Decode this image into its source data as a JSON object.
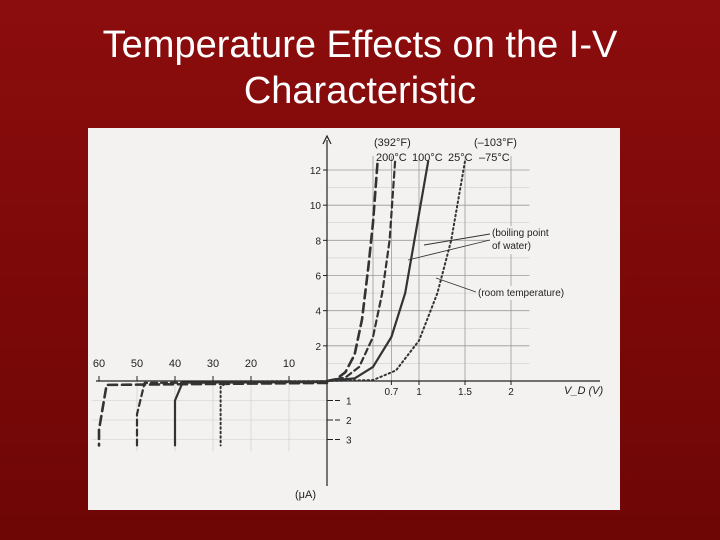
{
  "slide": {
    "title_line1": "Temperature Effects on the I-V",
    "title_line2": "Characteristic"
  },
  "chart_data": {
    "type": "line",
    "xlabel": "V_D (V)",
    "forward_ylabel": "",
    "reverse_ylabel": "(μA)",
    "forward_x_ticks": [
      {
        "v": 0.7,
        "label": "0.7"
      },
      {
        "v": 1,
        "label": "1"
      },
      {
        "v": 1.5,
        "label": "1.5"
      },
      {
        "v": 2,
        "label": "2"
      }
    ],
    "reverse_x_ticks": [
      {
        "v": -10,
        "label": "10"
      },
      {
        "v": -20,
        "label": "20"
      },
      {
        "v": -30,
        "label": "30"
      },
      {
        "v": -40,
        "label": "40"
      },
      {
        "v": -50,
        "label": "50"
      },
      {
        "v": -60,
        "label": "60"
      }
    ],
    "forward_y_ticks": [
      2,
      4,
      6,
      8,
      10,
      12
    ],
    "reverse_y_ticks": [
      {
        "v": 1,
        "label": "1"
      },
      {
        "v": 2,
        "label": "2"
      },
      {
        "v": 3,
        "label": "3"
      }
    ],
    "series": [
      {
        "name": "200°C",
        "style": "dashed-heavy",
        "forward": [
          [
            0,
            0
          ],
          [
            0.1,
            0.1
          ],
          [
            0.2,
            0.5
          ],
          [
            0.3,
            1.5
          ],
          [
            0.38,
            3.5
          ],
          [
            0.45,
            6.5
          ],
          [
            0.5,
            9
          ],
          [
            0.55,
            12.5
          ]
        ],
        "reverse": [
          [
            0,
            -0.1
          ],
          [
            -58,
            -0.2
          ],
          [
            -60,
            -2.5
          ],
          [
            -60,
            -3.3
          ]
        ]
      },
      {
        "name": "100°C",
        "style": "dashed",
        "forward": [
          [
            0,
            0
          ],
          [
            0.2,
            0.2
          ],
          [
            0.35,
            0.8
          ],
          [
            0.5,
            2.5
          ],
          [
            0.6,
            5
          ],
          [
            0.68,
            8
          ],
          [
            0.74,
            12.5
          ]
        ],
        "reverse": [
          [
            0,
            -0.05
          ],
          [
            -48,
            -0.1
          ],
          [
            -50,
            -1.7
          ],
          [
            -50,
            -3.3
          ]
        ]
      },
      {
        "name": "25°C",
        "style": "solid",
        "forward": [
          [
            0,
            0
          ],
          [
            0.3,
            0.15
          ],
          [
            0.5,
            0.8
          ],
          [
            0.7,
            2.5
          ],
          [
            0.85,
            5
          ],
          [
            0.95,
            8
          ],
          [
            1.1,
            12.5
          ]
        ],
        "reverse": [
          [
            0,
            -0.02
          ],
          [
            -38,
            -0.08
          ],
          [
            -40,
            -1.0
          ],
          [
            -40,
            -3.3
          ]
        ]
      },
      {
        "name": "–75°C",
        "style": "dotted",
        "forward": [
          [
            0,
            0
          ],
          [
            0.5,
            0.05
          ],
          [
            0.75,
            0.6
          ],
          [
            1,
            2.3
          ],
          [
            1.2,
            5
          ],
          [
            1.35,
            8
          ],
          [
            1.5,
            12.5
          ]
        ],
        "reverse": [
          [
            0,
            -0.01
          ],
          [
            -26,
            -0.02
          ],
          [
            -28,
            -0.3
          ],
          [
            -28,
            -3.3
          ]
        ]
      }
    ],
    "top_labels": [
      "(392°F)",
      "(–103°F)"
    ],
    "annotations": [
      "(boiling point",
      "of water)",
      "(room temperature)"
    ],
    "grid": true
  }
}
